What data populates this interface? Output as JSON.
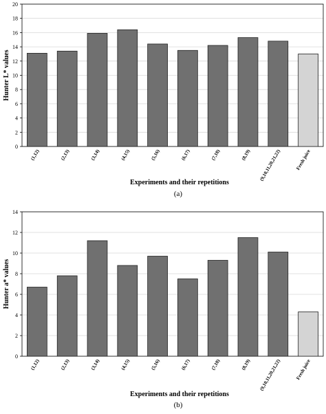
{
  "chart_data": [
    {
      "type": "bar",
      "y_label": "Hunter L* values",
      "x_label": "Experiments and their repetitions",
      "caption": "(a)",
      "categories": [
        "(1,12)",
        "(2,13)",
        "(3,14)",
        "(4,15)",
        "(5,16)",
        "(6,17)",
        "(7,18)",
        "(8,19)",
        "(9,10,11,20,21,22)",
        "Fresh juice"
      ],
      "values": [
        13.1,
        13.4,
        15.9,
        16.4,
        14.4,
        13.5,
        14.2,
        15.3,
        14.8,
        13.0
      ],
      "colors": [
        "#707070",
        "#707070",
        "#707070",
        "#707070",
        "#707070",
        "#707070",
        "#707070",
        "#707070",
        "#707070",
        "#d4d4d4"
      ],
      "ylim": [
        0,
        20
      ],
      "yticks": [
        0,
        2,
        4,
        6,
        8,
        10,
        12,
        14,
        16,
        18,
        20
      ],
      "grid": true
    },
    {
      "type": "bar",
      "y_label": "Hunter a* values",
      "x_label": "Experiments and their repetitions",
      "caption": "(b)",
      "categories": [
        "(1,12)",
        "(2,13)",
        "(3,14)",
        "(4,15)",
        "(5,16)",
        "(6,17)",
        "(7,18)",
        "(8,19)",
        "(9,10,11,20,21,22)",
        "Fresh juice"
      ],
      "values": [
        6.7,
        7.8,
        11.2,
        8.8,
        9.7,
        7.5,
        9.3,
        11.5,
        10.1,
        4.3
      ],
      "colors": [
        "#707070",
        "#707070",
        "#707070",
        "#707070",
        "#707070",
        "#707070",
        "#707070",
        "#707070",
        "#707070",
        "#d4d4d4"
      ],
      "ylim": [
        0,
        14
      ],
      "yticks": [
        0,
        2,
        4,
        6,
        8,
        10,
        12,
        14
      ],
      "grid": true
    }
  ]
}
